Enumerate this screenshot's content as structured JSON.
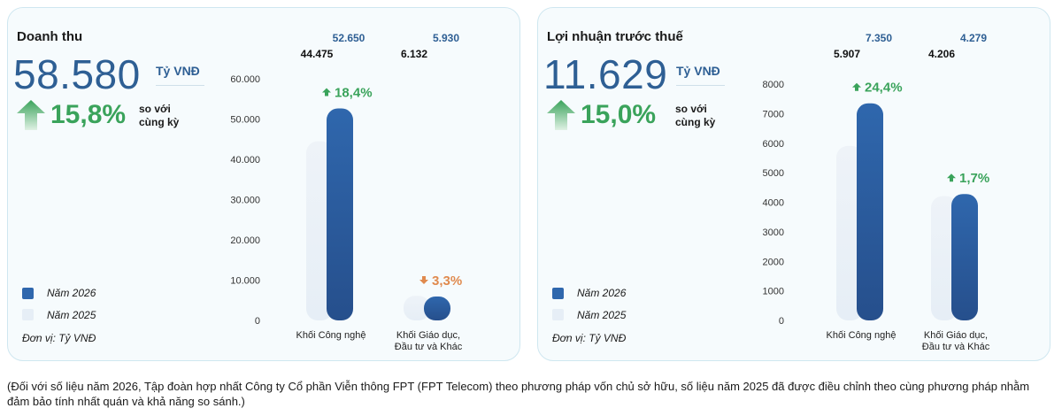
{
  "colors": {
    "bar_2026": "#2f67ad",
    "bar_2026_dark": "#264f8c",
    "bar_2025": "#e6eef6",
    "growth_up": "#3aa35b",
    "growth_down": "#e08a4e",
    "value_2026_label": "#2e5f94"
  },
  "footnote": "(Đối với số liệu năm 2026, Tập đoàn hợp nhất Công ty Cổ phần Viễn thông FPT (FPT Telecom) theo phương pháp vốn chủ sở hữu, số liệu năm 2025 đã được điều chỉnh theo cùng phương pháp nhằm đảm bảo tính nhất quán và khả năng so sánh.)",
  "panels": [
    {
      "title": "Doanh thu",
      "big_value": "58.580",
      "unit": "Tỷ VNĐ",
      "growth": "15,8%",
      "growth_text": "so với cùng kỳ",
      "legend": [
        "Năm 2026",
        "Năm 2025"
      ],
      "unit_note": "Đơn vị: Tỷ VNĐ"
    },
    {
      "title": "Lợi nhuận trước thuế",
      "big_value": "11.629",
      "unit": "Tỷ VNĐ",
      "growth": "15,0%",
      "growth_text": "so với cùng kỳ",
      "legend": [
        "Năm 2026",
        "Năm 2025"
      ],
      "unit_note": "Đơn vị: Tỷ VNĐ"
    }
  ],
  "chart_data": [
    {
      "type": "bar",
      "title": "Doanh thu",
      "categories": [
        "Khối Công nghệ",
        "Khối Giáo dục,\nĐầu tư và Khác"
      ],
      "series": [
        {
          "name": "Năm 2025",
          "values": [
            44475,
            6132
          ],
          "labels": [
            "44.475",
            "6.132"
          ]
        },
        {
          "name": "Năm 2026",
          "values": [
            52650,
            5930
          ],
          "labels": [
            "52.650",
            "5.930"
          ]
        }
      ],
      "growth_labels": [
        "18,4%",
        "3,3%"
      ],
      "growth_direction": [
        "up",
        "down"
      ],
      "yticks": [
        "0",
        "10.000",
        "20.000",
        "30.000",
        "40.000",
        "50.000",
        "60.000"
      ],
      "ylim": [
        0,
        60000
      ],
      "legend_position": "bottom-left"
    },
    {
      "type": "bar",
      "title": "Lợi nhuận trước thuế",
      "categories": [
        "Khối Công nghệ",
        "Khối Giáo dục,\nĐầu tư và Khác"
      ],
      "series": [
        {
          "name": "Năm 2025",
          "values": [
            5907,
            4206
          ],
          "labels": [
            "5.907",
            "4.206"
          ]
        },
        {
          "name": "Năm 2026",
          "values": [
            7350,
            4279
          ],
          "labels": [
            "7.350",
            "4.279"
          ]
        }
      ],
      "growth_labels": [
        "24,4%",
        "1,7%"
      ],
      "growth_direction": [
        "up",
        "up"
      ],
      "yticks": [
        "0",
        "1000",
        "2000",
        "3000",
        "4000",
        "5000",
        "6000",
        "7000",
        "8000"
      ],
      "ylim": [
        0,
        8000
      ],
      "legend_position": "bottom-left"
    }
  ]
}
